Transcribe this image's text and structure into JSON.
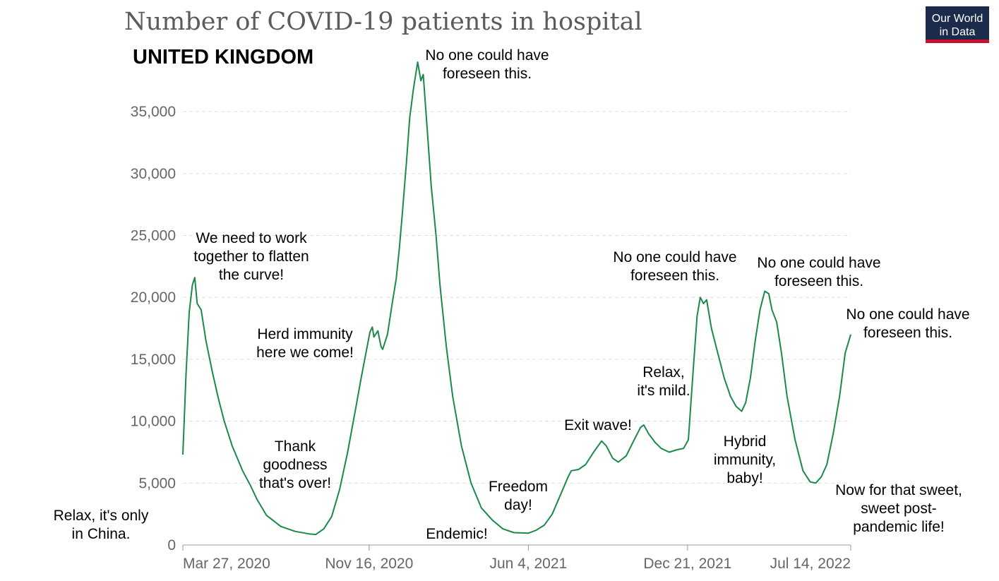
{
  "chart_data": {
    "type": "line",
    "title": "Number of COVID-19 patients in hospital",
    "subtitle": "UNITED KINGDOM",
    "logo": {
      "line1": "Our World",
      "line2": "in Data",
      "bg": "#1a2b4c",
      "stripe": "#c8102e"
    },
    "line_color": "#1a8a4a",
    "grid": true,
    "ylim": [
      0,
      37500
    ],
    "yticks": [
      {
        "value": 0,
        "label": "0"
      },
      {
        "value": 5000,
        "label": "5,000"
      },
      {
        "value": 10000,
        "label": "10,000"
      },
      {
        "value": 15000,
        "label": "15,000"
      },
      {
        "value": 20000,
        "label": "20,000"
      },
      {
        "value": 25000,
        "label": "25,000"
      },
      {
        "value": 30000,
        "label": "30,000"
      },
      {
        "value": 35000,
        "label": "35,000"
      }
    ],
    "xlim": [
      "2020-03-27",
      "2022-07-14"
    ],
    "xticks": [
      {
        "date": "2020-03-27",
        "label": "Mar 27, 2020"
      },
      {
        "date": "2020-11-16",
        "label": "Nov 16, 2020"
      },
      {
        "date": "2021-06-04",
        "label": "Jun 4, 2021"
      },
      {
        "date": "2021-12-21",
        "label": "Dec 21, 2021"
      },
      {
        "date": "2022-07-14",
        "label": "Jul 14, 2022"
      }
    ],
    "series": [
      {
        "points": [
          [
            "2020-03-27",
            7300
          ],
          [
            "2020-03-31",
            13800
          ],
          [
            "2020-04-04",
            18800
          ],
          [
            "2020-04-08",
            21000
          ],
          [
            "2020-04-11",
            21600
          ],
          [
            "2020-04-14",
            19500
          ],
          [
            "2020-04-19",
            19000
          ],
          [
            "2020-04-25",
            16500
          ],
          [
            "2020-05-03",
            14000
          ],
          [
            "2020-05-10",
            12000
          ],
          [
            "2020-05-18",
            10000
          ],
          [
            "2020-05-28",
            8000
          ],
          [
            "2020-06-10",
            6000
          ],
          [
            "2020-06-20",
            4800
          ],
          [
            "2020-06-28",
            3700
          ],
          [
            "2020-07-10",
            2400
          ],
          [
            "2020-07-28",
            1500
          ],
          [
            "2020-08-15",
            1100
          ],
          [
            "2020-09-01",
            900
          ],
          [
            "2020-09-10",
            850
          ],
          [
            "2020-09-20",
            1300
          ],
          [
            "2020-09-30",
            2300
          ],
          [
            "2020-10-10",
            4500
          ],
          [
            "2020-10-20",
            7500
          ],
          [
            "2020-10-30",
            11000
          ],
          [
            "2020-11-06",
            13500
          ],
          [
            "2020-11-12",
            15500
          ],
          [
            "2020-11-17",
            17200
          ],
          [
            "2020-11-20",
            17600
          ],
          [
            "2020-11-22",
            16800
          ],
          [
            "2020-11-27",
            17300
          ],
          [
            "2020-12-01",
            16000
          ],
          [
            "2020-12-03",
            15800
          ],
          [
            "2020-12-09",
            17000
          ],
          [
            "2020-12-15",
            19500
          ],
          [
            "2020-12-20",
            21500
          ],
          [
            "2020-12-24",
            24000
          ],
          [
            "2020-12-28",
            27000
          ],
          [
            "2021-01-02",
            31000
          ],
          [
            "2021-01-06",
            34500
          ],
          [
            "2021-01-11",
            37000
          ],
          [
            "2021-01-16",
            39000
          ],
          [
            "2021-01-20",
            37500
          ],
          [
            "2021-01-23",
            38000
          ],
          [
            "2021-01-28",
            33500
          ],
          [
            "2021-02-02",
            29000
          ],
          [
            "2021-02-08",
            25000
          ],
          [
            "2021-02-13",
            21000
          ],
          [
            "2021-02-21",
            16000
          ],
          [
            "2021-03-01",
            12000
          ],
          [
            "2021-03-12",
            8000
          ],
          [
            "2021-03-24",
            5000
          ],
          [
            "2021-04-06",
            3000
          ],
          [
            "2021-04-20",
            2000
          ],
          [
            "2021-05-03",
            1300
          ],
          [
            "2021-05-17",
            1000
          ],
          [
            "2021-06-04",
            950
          ],
          [
            "2021-06-14",
            1200
          ],
          [
            "2021-06-24",
            1600
          ],
          [
            "2021-07-04",
            2500
          ],
          [
            "2021-07-14",
            4000
          ],
          [
            "2021-07-24",
            5500
          ],
          [
            "2021-07-28",
            6000
          ],
          [
            "2021-08-06",
            6100
          ],
          [
            "2021-08-15",
            6500
          ],
          [
            "2021-08-25",
            7500
          ],
          [
            "2021-09-04",
            8400
          ],
          [
            "2021-09-10",
            8000
          ],
          [
            "2021-09-18",
            7000
          ],
          [
            "2021-09-25",
            6700
          ],
          [
            "2021-10-05",
            7200
          ],
          [
            "2021-10-15",
            8500
          ],
          [
            "2021-10-23",
            9500
          ],
          [
            "2021-10-27",
            9700
          ],
          [
            "2021-11-02",
            9000
          ],
          [
            "2021-11-10",
            8300
          ],
          [
            "2021-11-18",
            7800
          ],
          [
            "2021-11-28",
            7500
          ],
          [
            "2021-12-08",
            7700
          ],
          [
            "2021-12-16",
            7800
          ],
          [
            "2021-12-22",
            8500
          ],
          [
            "2021-12-28",
            14000
          ],
          [
            "2022-01-02",
            18500
          ],
          [
            "2022-01-06",
            20000
          ],
          [
            "2022-01-10",
            19500
          ],
          [
            "2022-01-14",
            19800
          ],
          [
            "2022-01-20",
            17500
          ],
          [
            "2022-01-28",
            15500
          ],
          [
            "2022-02-05",
            13500
          ],
          [
            "2022-02-13",
            12000
          ],
          [
            "2022-02-20",
            11200
          ],
          [
            "2022-02-27",
            10800
          ],
          [
            "2022-03-04",
            11500
          ],
          [
            "2022-03-10",
            13500
          ],
          [
            "2022-03-16",
            16500
          ],
          [
            "2022-03-22",
            19000
          ],
          [
            "2022-03-28",
            20500
          ],
          [
            "2022-04-02",
            20300
          ],
          [
            "2022-04-06",
            19000
          ],
          [
            "2022-04-12",
            18000
          ],
          [
            "2022-04-18",
            15500
          ],
          [
            "2022-04-25",
            12000
          ],
          [
            "2022-05-05",
            8500
          ],
          [
            "2022-05-15",
            6000
          ],
          [
            "2022-05-24",
            5100
          ],
          [
            "2022-05-31",
            5000
          ],
          [
            "2022-06-07",
            5500
          ],
          [
            "2022-06-14",
            6500
          ],
          [
            "2022-06-22",
            9000
          ],
          [
            "2022-06-30",
            12000
          ],
          [
            "2022-07-07",
            15500
          ],
          [
            "2022-07-14",
            17000
          ]
        ]
      }
    ],
    "annotations": [
      {
        "lines": [
          "Relax, it's only",
          "in China."
        ]
      },
      {
        "lines": [
          "We need to work",
          "together to flatten",
          "the curve!"
        ]
      },
      {
        "lines": [
          "Thank",
          "goodness",
          "that's over!"
        ]
      },
      {
        "lines": [
          "Herd immunity",
          "here we come!"
        ]
      },
      {
        "lines": [
          "No one could have",
          "foreseen this."
        ]
      },
      {
        "lines": [
          "Endemic!"
        ]
      },
      {
        "lines": [
          "Freedom",
          "day!"
        ]
      },
      {
        "lines": [
          "Exit wave!"
        ]
      },
      {
        "lines": [
          "Relax,",
          "it's mild."
        ]
      },
      {
        "lines": [
          "No one could have",
          "foreseen this."
        ]
      },
      {
        "lines": [
          "Hybrid",
          "immunity,",
          "baby!"
        ]
      },
      {
        "lines": [
          "No one could have",
          "foreseen this."
        ]
      },
      {
        "lines": [
          "No one could have",
          "foreseen this."
        ]
      },
      {
        "lines": [
          "Now for that sweet,",
          "sweet post-",
          "pandemic life!"
        ]
      }
    ]
  }
}
